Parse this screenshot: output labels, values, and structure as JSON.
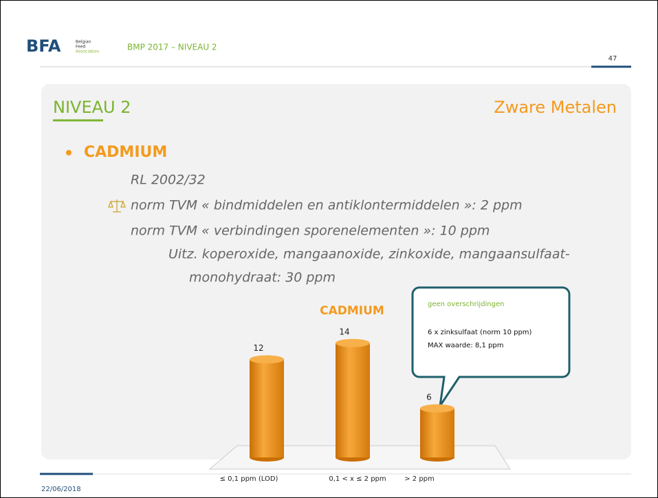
{
  "header": {
    "logo": "BFA",
    "logo_sub": [
      "Belgian",
      "Feed",
      "Association"
    ],
    "title": "BMP 2017 – NIVEAU 2",
    "page_number": "47"
  },
  "slide": {
    "heading": "NIVEAU 2",
    "topic": "Zware Metalen",
    "bullet": "CADMIUM",
    "lines": [
      "RL 2002/32",
      "norm TVM « bindmiddelen en antiklontermiddelen »: 2 ppm",
      "norm TVM « verbindingen sporenelementen »: 10 ppm",
      "Uitz. koperoxide, mangaanoxide, zinkoxide, mangaansulfaat-",
      "monohydraat: 30 ppm"
    ]
  },
  "chart_data": {
    "type": "bar",
    "title": "CADMIUM",
    "categories": [
      "≤ 0,1 ppm (LOD)",
      "0,1 < x ≤  2 ppm",
      "> 2 ppm"
    ],
    "values": [
      12,
      14,
      6
    ],
    "color": "#f39a1e",
    "ylim": [
      0,
      16
    ]
  },
  "callout": {
    "lines": [
      "geen overschrijdingen",
      "6 x zinksulfaat (norm 10 ppm)",
      "MAX waarde: 8,1 ppm"
    ]
  },
  "footer": {
    "date": "22/06/2018"
  }
}
